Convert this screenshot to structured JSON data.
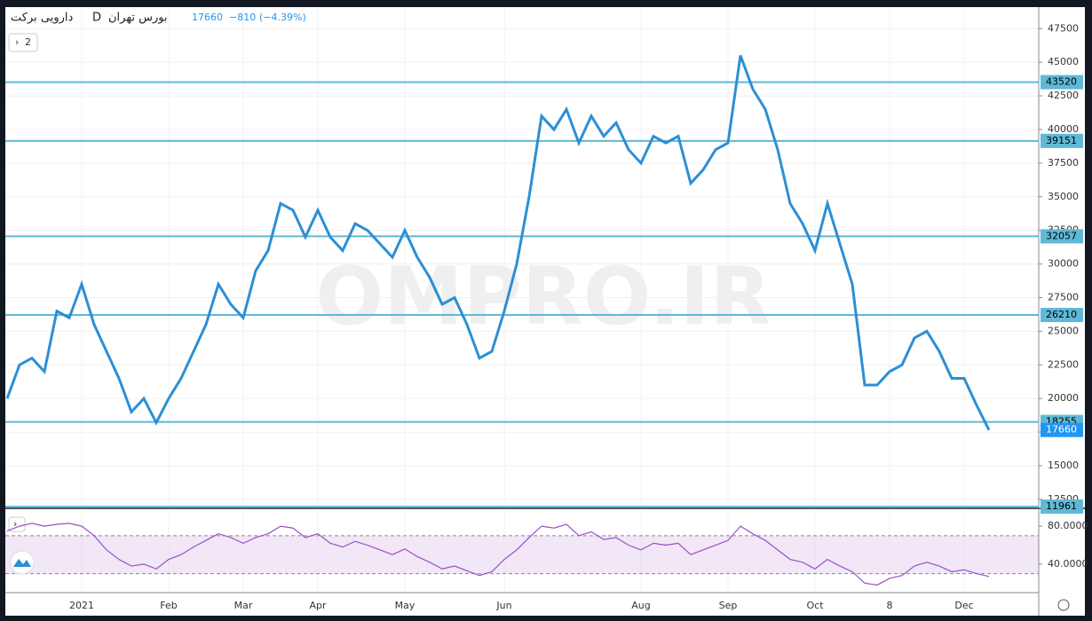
{
  "header": {
    "symbol": "دارویی برکت",
    "interval": "D",
    "exchange": "بورس تهران",
    "change": "−810",
    "change_pct": "(−4.39%)",
    "indicator_count": "2"
  },
  "watermark": "OMPRO.IR",
  "chart_data": [
    {
      "type": "line",
      "color": "#2b8fd6",
      "categories": [
        null,
        null,
        null,
        null,
        null,
        null,
        "2021",
        null,
        null,
        null,
        null,
        null,
        null,
        "Feb",
        null,
        null,
        null,
        null,
        null,
        "Mar",
        null,
        null,
        null,
        null,
        null,
        "Apr",
        null,
        null,
        null,
        null,
        null,
        null,
        "May",
        null,
        null,
        null,
        null,
        null,
        null,
        null,
        "Jun",
        null,
        null,
        null,
        null,
        null,
        null,
        null,
        null,
        null,
        null,
        "Aug",
        null,
        null,
        null,
        null,
        null,
        null,
        "Sep",
        null,
        null,
        null,
        null,
        null,
        null,
        "Oct",
        null,
        null,
        null,
        null,
        null,
        "8",
        null,
        null,
        null,
        null,
        null,
        "Dec",
        null,
        null
      ],
      "values": [
        20000,
        22500,
        23000,
        22000,
        26500,
        26000,
        28500,
        25500,
        23500,
        21500,
        19000,
        20000,
        18200,
        20000,
        21500,
        23500,
        25500,
        28500,
        27000,
        26000,
        29500,
        31000,
        34500,
        34000,
        32000,
        34000,
        32000,
        31000,
        33000,
        32500,
        31500,
        30500,
        32500,
        30500,
        29000,
        27000,
        27500,
        25500,
        23000,
        23500,
        26500,
        30000,
        35000,
        41000,
        40000,
        41500,
        39000,
        41000,
        39500,
        40500,
        38500,
        37500,
        39500,
        39000,
        39500,
        36000,
        37000,
        38500,
        39000,
        45500,
        43000,
        41500,
        38500,
        34500,
        33000,
        31000,
        34500,
        31500,
        28500,
        21000,
        21000,
        22000,
        22500,
        24500,
        25000,
        23500,
        21500,
        21500,
        19500,
        17660
      ],
      "ylim": [
        11900,
        49100
      ],
      "yticks": [
        12500,
        15000,
        17500,
        20000,
        22500,
        25000,
        27500,
        30000,
        32500,
        35000,
        37500,
        40000,
        42500,
        45000,
        47500
      ],
      "levels": [
        43520,
        39151,
        32057,
        26210,
        18255,
        11961
      ],
      "level_color": "#5fb8d6",
      "grid": true
    },
    {
      "type": "line",
      "color": "#9c4fc4",
      "values": [
        75,
        80,
        83,
        80,
        82,
        83,
        80,
        70,
        55,
        45,
        38,
        40,
        35,
        45,
        50,
        58,
        65,
        72,
        68,
        62,
        68,
        72,
        80,
        78,
        68,
        72,
        62,
        58,
        64,
        60,
        55,
        50,
        56,
        48,
        42,
        35,
        38,
        33,
        28,
        32,
        45,
        55,
        68,
        80,
        78,
        82,
        70,
        74,
        66,
        68,
        60,
        55,
        62,
        60,
        62,
        50,
        55,
        60,
        65,
        80,
        72,
        65,
        55,
        45,
        42,
        35,
        45,
        38,
        32,
        20,
        18,
        25,
        28,
        38,
        42,
        38,
        32,
        34,
        30,
        27
      ],
      "ylim": [
        10,
        96
      ],
      "yticks": [
        {
          "value": 40,
          "label": "40.0000"
        },
        {
          "value": 80,
          "label": "80.0000"
        }
      ],
      "band": [
        30,
        70
      ],
      "band_color": "#e8d7f0"
    }
  ]
}
